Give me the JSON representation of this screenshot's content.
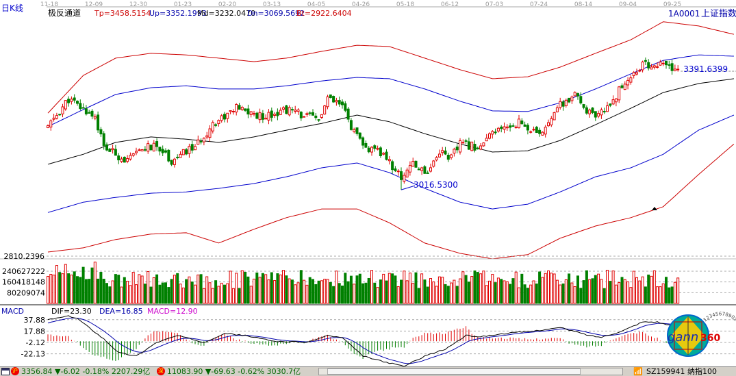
{
  "header": {
    "period_label": "日K线",
    "indicator_name": "极反通道",
    "tp": "Tp=3458.5154",
    "up": "Up=3352.1993",
    "md": "Md=3232.0470",
    "dn": "Dn=3069.5692",
    "bt": "Bt=2922.6404",
    "symbol": "1A0001",
    "symbol_name": "上证指数"
  },
  "colors": {
    "up": "#e00000",
    "down": "#008000",
    "band_outer": "#cc0000",
    "band_inner": "#0000cc",
    "middle": "#000000",
    "dif": "#000000",
    "dea": "#0000aa",
    "macd_label": "#cc00cc"
  },
  "date_labels": [
    "11-18",
    "12-09",
    "12-30",
    "01-23",
    "02-20",
    "03-13",
    "04-05",
    "04-26",
    "05-18",
    "06-12",
    "07-03",
    "07-24",
    "08-14",
    "09-04",
    "09-25"
  ],
  "price_axis_label": "2810.2396",
  "annotations": {
    "last_price": "3391.6399",
    "low_price": "3016.5300"
  },
  "volume_axis": [
    "240627222",
    "160418148",
    "80209074"
  ],
  "macd": {
    "title": "MACD",
    "dif": "DIF=23.30",
    "dea": "DEA=16.85",
    "macd": "MACD=12.90",
    "axis": [
      "37.88",
      "17.88",
      "-2.12",
      "-22.13"
    ]
  },
  "logo": {
    "text": "gann360",
    "ring": "1234567890123456789"
  },
  "status": {
    "sh_badge": "沪",
    "sh_quote": "3356.84",
    "sh_change": "-6.02 -0.18% 2207.29亿",
    "sz_badge": "深",
    "sz_quote": "11083.90",
    "sz_change": "-69.63 -0.62% 3030.7亿",
    "watch": "SZ159941 纳指100"
  },
  "chart_data": {
    "type": "candlestick",
    "title": "上证指数 日K线 极反通道",
    "bar_count": 215,
    "close_keypoints": [
      [
        0,
        3212
      ],
      [
        7,
        3298
      ],
      [
        12,
        3266
      ],
      [
        16,
        3245
      ],
      [
        19,
        3149
      ],
      [
        27,
        3106
      ],
      [
        33,
        3149
      ],
      [
        38,
        3149
      ],
      [
        42,
        3106
      ],
      [
        51,
        3159
      ],
      [
        56,
        3223
      ],
      [
        64,
        3270
      ],
      [
        72,
        3245
      ],
      [
        81,
        3266
      ],
      [
        92,
        3234
      ],
      [
        95,
        3298
      ],
      [
        100,
        3276
      ],
      [
        103,
        3213
      ],
      [
        107,
        3149
      ],
      [
        114,
        3127
      ],
      [
        120,
        3053
      ],
      [
        123,
        3096
      ],
      [
        129,
        3074
      ],
      [
        133,
        3138
      ],
      [
        137,
        3117
      ],
      [
        140,
        3159
      ],
      [
        147,
        3150
      ],
      [
        151,
        3191
      ],
      [
        160,
        3228
      ],
      [
        167,
        3181
      ],
      [
        172,
        3266
      ],
      [
        179,
        3308
      ],
      [
        186,
        3234
      ],
      [
        191,
        3287
      ],
      [
        197,
        3362
      ],
      [
        202,
        3404
      ],
      [
        208,
        3404
      ],
      [
        214,
        3391.64
      ]
    ],
    "low_point": {
      "bar": 120,
      "value": 3016.53
    },
    "band_sample_bars": [
      0,
      12,
      23,
      35,
      47,
      58,
      70,
      81,
      93,
      105,
      116,
      128,
      140,
      151,
      163,
      174,
      186,
      198,
      209,
      221,
      233
    ],
    "bands": {
      "Tp": [
        3255,
        3372,
        3426,
        3441,
        3436,
        3426,
        3415,
        3426,
        3447,
        3466,
        3462,
        3426,
        3390,
        3362,
        3368,
        3398,
        3441,
        3483,
        3539,
        3526,
        3500
      ],
      "Up": [
        3213,
        3266,
        3313,
        3334,
        3340,
        3330,
        3330,
        3340,
        3355,
        3366,
        3362,
        3330,
        3292,
        3262,
        3260,
        3287,
        3330,
        3377,
        3419,
        3436,
        3432
      ],
      "Md": [
        3096,
        3127,
        3164,
        3181,
        3174,
        3164,
        3181,
        3202,
        3223,
        3249,
        3228,
        3191,
        3159,
        3134,
        3138,
        3170,
        3219,
        3270,
        3319,
        3347,
        3362
      ],
      "Dn": [
        2946,
        2978,
        2993,
        3006,
        3010,
        3021,
        3036,
        3057,
        3085,
        3100,
        3070,
        3021,
        2978,
        2957,
        2972,
        3010,
        3057,
        3085,
        3127,
        3202,
        3249
      ],
      "Bt": [
        2823,
        2836,
        2862,
        2879,
        2883,
        2851,
        2894,
        2930,
        2957,
        2957,
        2914,
        2851,
        2819,
        2802,
        2815,
        2866,
        2904,
        2930,
        2964,
        3064,
        3159
      ]
    },
    "volume_range": [
      0,
      320000000
    ],
    "dif_keypoints": [
      [
        0,
        38
      ],
      [
        7,
        44
      ],
      [
        10,
        40
      ],
      [
        19,
        4
      ],
      [
        24,
        -20
      ],
      [
        30,
        -26
      ],
      [
        37,
        -2
      ],
      [
        44,
        10
      ],
      [
        53,
        -2
      ],
      [
        60,
        14
      ],
      [
        67,
        10
      ],
      [
        77,
        0
      ],
      [
        88,
        -2
      ],
      [
        95,
        10
      ],
      [
        100,
        6
      ],
      [
        107,
        -26
      ],
      [
        114,
        -36
      ],
      [
        121,
        -44
      ],
      [
        128,
        -26
      ],
      [
        135,
        -14
      ],
      [
        142,
        10
      ],
      [
        147,
        8
      ],
      [
        156,
        14
      ],
      [
        165,
        18
      ],
      [
        174,
        24
      ],
      [
        184,
        10
      ],
      [
        188,
        7
      ],
      [
        195,
        18
      ],
      [
        202,
        34
      ],
      [
        207,
        34
      ],
      [
        214,
        23.3
      ]
    ],
    "macd_ylim": [
      -30,
      48
    ]
  }
}
